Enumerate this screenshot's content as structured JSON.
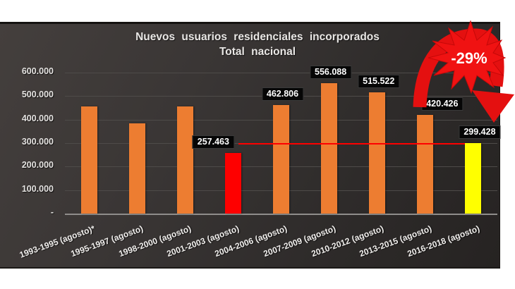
{
  "chart_data": {
    "type": "bar",
    "title": "Nuevos usuarios residenciales  incorporados",
    "subtitle": "Total nacional",
    "categories": [
      "1993-1995 (agosto)*",
      "1995-1997 (agosto)",
      "1998-2000 (agosto)",
      "2001-2003 (agosto)",
      "2004-2006 (agosto)",
      "2007-2009 (agosto)",
      "2010-2012 (agosto)",
      "2013-2015 (agosto)",
      "2016-2018 (agosto)"
    ],
    "values": [
      455000,
      385000,
      455000,
      257463,
      462806,
      556088,
      515522,
      420426,
      299428
    ],
    "value_labels": [
      null,
      null,
      null,
      "257.463",
      "462.806",
      "556.088",
      "515.522",
      "420.426",
      "299.428"
    ],
    "bar_colors": [
      "#ED7D31",
      "#ED7D31",
      "#ED7D31",
      "#FE0000",
      "#ED7D31",
      "#ED7D31",
      "#ED7D31",
      "#ED7D31",
      "#FFFF00"
    ],
    "y_tick_labels": [
      "600.000",
      "500.000",
      "400.000",
      "300.000",
      "200.000",
      "100.000",
      "-"
    ],
    "y_tick_values": [
      600000,
      500000,
      400000,
      300000,
      200000,
      100000,
      0
    ],
    "ylim": [
      0,
      620000
    ],
    "grid": "on",
    "legend": "none",
    "reference_line": {
      "value": 299428,
      "color": "#FE0000",
      "spans": "from 2001-2003 data label to 2016-2018 bar"
    },
    "annotation": {
      "text": "-29%",
      "shape": "red starburst with curved down arrow",
      "color": "#EE1010"
    }
  },
  "colors": {
    "panel_bg_from": "#443F3D",
    "panel_bg_to": "#262322",
    "grid": "#4E4B49",
    "axis_line": "#8F8D8B",
    "label_box_bg": "#060606",
    "text_light": "#E9E7E5",
    "bar_orange": "#ED7D31",
    "bar_red": "#FE0000",
    "bar_yellow": "#FFFF00",
    "annotation_red": "#EE1010"
  }
}
